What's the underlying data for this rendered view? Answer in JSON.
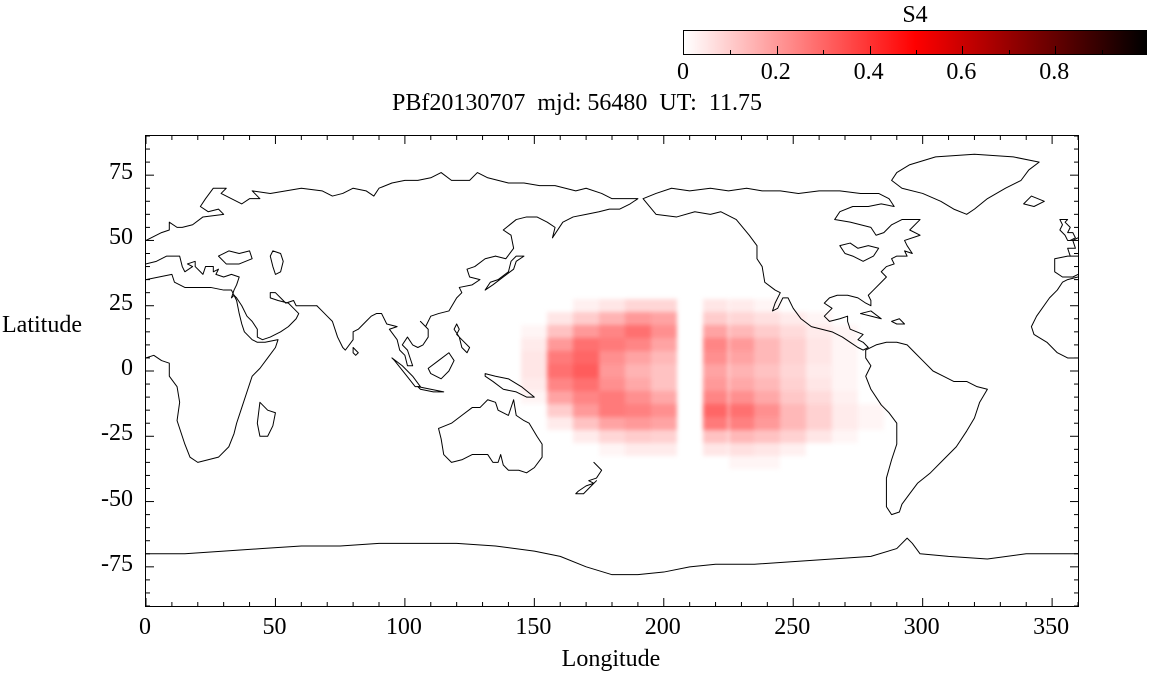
{
  "title": "PBf20130707  mjd: 56480  UT:  11.75",
  "colorbar": {
    "label": "S4",
    "ticks": [
      0,
      0.2,
      0.4,
      0.6,
      0.8
    ],
    "tick_labels": [
      "0",
      "0.2",
      "0.4",
      "0.6",
      "0.8"
    ],
    "range": [
      0,
      1
    ]
  },
  "axes": {
    "xlabel": "Longitude",
    "ylabel": "Latitude",
    "xlim": [
      0,
      360
    ],
    "ylim": [
      -90,
      90
    ],
    "x_ticks": [
      0,
      50,
      100,
      150,
      200,
      250,
      300,
      350
    ],
    "y_ticks": [
      75,
      50,
      25,
      0,
      -25,
      -50,
      -75
    ],
    "x_minor_step": 10,
    "y_minor_step": 5
  },
  "chart_data": {
    "type": "heatmap",
    "title": "PBf20130707  mjd: 56480  UT:  11.75",
    "xlabel": "Longitude",
    "ylabel": "Latitude",
    "value_label": "S4",
    "xlim": [
      0,
      360
    ],
    "ylim": [
      -90,
      90
    ],
    "zlim": [
      0,
      1
    ],
    "legend_position": "top-right-colorbar",
    "grid": false,
    "colormap": [
      {
        "at": 0.0,
        "color": "#ffffff"
      },
      {
        "at": 0.5,
        "color": "#ff0000"
      },
      {
        "at": 1.0,
        "color": "#000000"
      }
    ],
    "lon_cell_width": 10,
    "lat_cell_height": 5,
    "lon": [
      150,
      160,
      170,
      180,
      190,
      200,
      210,
      220,
      230,
      240,
      250,
      260,
      270,
      280
    ],
    "lat": [
      25,
      20,
      15,
      10,
      5,
      0,
      -5,
      -10,
      -15,
      -20,
      -25,
      -30,
      -35
    ],
    "values": [
      [
        0,
        0,
        0.03,
        0.05,
        0.08,
        0.08,
        0,
        0.05,
        0.04,
        0.02,
        0,
        0,
        0,
        0
      ],
      [
        0,
        0.05,
        0.1,
        0.15,
        0.2,
        0.18,
        0,
        0.1,
        0.08,
        0.06,
        0.04,
        0.02,
        0,
        0
      ],
      [
        0.02,
        0.12,
        0.2,
        0.24,
        0.28,
        0.22,
        0,
        0.18,
        0.14,
        0.1,
        0.07,
        0.04,
        0.02,
        0
      ],
      [
        0.04,
        0.2,
        0.28,
        0.26,
        0.24,
        0.18,
        0,
        0.24,
        0.2,
        0.14,
        0.09,
        0.05,
        0.02,
        0
      ],
      [
        0.05,
        0.26,
        0.3,
        0.22,
        0.18,
        0.14,
        0,
        0.22,
        0.18,
        0.14,
        0.09,
        0.05,
        0.02,
        0
      ],
      [
        0.05,
        0.28,
        0.32,
        0.2,
        0.15,
        0.12,
        0,
        0.18,
        0.15,
        0.12,
        0.08,
        0.04,
        0.02,
        0
      ],
      [
        0.04,
        0.24,
        0.28,
        0.22,
        0.17,
        0.12,
        0,
        0.2,
        0.17,
        0.14,
        0.09,
        0.05,
        0.02,
        0
      ],
      [
        0.02,
        0.18,
        0.24,
        0.26,
        0.22,
        0.17,
        0,
        0.24,
        0.22,
        0.17,
        0.11,
        0.07,
        0.03,
        0
      ],
      [
        0,
        0.1,
        0.2,
        0.26,
        0.25,
        0.22,
        0,
        0.3,
        0.28,
        0.22,
        0.14,
        0.09,
        0.04,
        0.02
      ],
      [
        0,
        0.04,
        0.12,
        0.18,
        0.2,
        0.18,
        0,
        0.26,
        0.25,
        0.2,
        0.14,
        0.09,
        0.04,
        0.02
      ],
      [
        0,
        0,
        0.04,
        0.08,
        0.1,
        0.09,
        0,
        0.12,
        0.14,
        0.12,
        0.09,
        0.05,
        0.02,
        0
      ],
      [
        0,
        0,
        0,
        0.02,
        0.04,
        0.04,
        0,
        0.05,
        0.06,
        0.05,
        0.03,
        0,
        0,
        0
      ],
      [
        0,
        0,
        0,
        0,
        0,
        0,
        0,
        0,
        0.02,
        0.02,
        0,
        0,
        0,
        0
      ]
    ]
  }
}
